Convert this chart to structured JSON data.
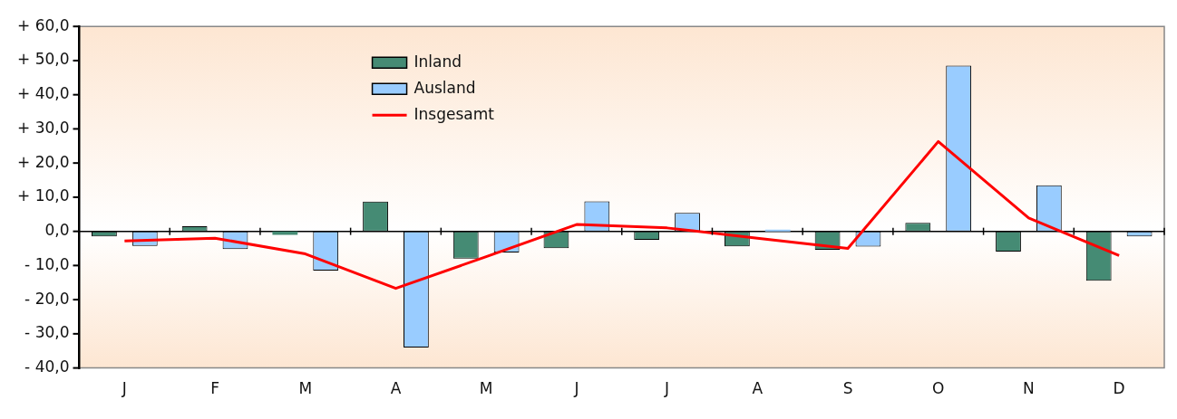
{
  "chart_data": {
    "type": "bar",
    "categories": [
      "J",
      "F",
      "M",
      "A",
      "M",
      "J",
      "J",
      "A",
      "S",
      "O",
      "N",
      "D"
    ],
    "series": [
      {
        "name": "Inland",
        "color": "#458b74",
        "values": [
          -1.5,
          1.5,
          -1,
          8.7,
          -8,
          -4.9,
          -2.5,
          -4.4,
          -5.4,
          2.5,
          -5.9,
          -14.5
        ]
      },
      {
        "name": "Ausland",
        "color": "#99ccff",
        "values": [
          -4.3,
          -5.2,
          -11.5,
          -34,
          -6.2,
          8.8,
          5.4,
          0.5,
          -4.5,
          48.5,
          13.5,
          -1.5
        ]
      },
      {
        "name": "Insgesamt",
        "type": "line",
        "color": "#ff0000",
        "values": [
          -2.8,
          -2,
          -6.6,
          -16.7,
          -7.4,
          2,
          1,
          -2,
          -5,
          26.3,
          3.9,
          -7.1
        ]
      }
    ],
    "ylim": [
      -40,
      60
    ],
    "yticks": [
      {
        "value": -40,
        "label": "- 40,0"
      },
      {
        "value": -30,
        "label": "- 30,0"
      },
      {
        "value": -20,
        "label": "- 20,0"
      },
      {
        "value": -10,
        "label": "- 10,0"
      },
      {
        "value": 0,
        "label": "0,0"
      },
      {
        "value": 10,
        "label": "+ 10,0"
      },
      {
        "value": 20,
        "label": "+ 20,0"
      },
      {
        "value": 30,
        "label": "+ 30,0"
      },
      {
        "value": 40,
        "label": "+ 40,0"
      },
      {
        "value": 50,
        "label": "+ 50,0"
      },
      {
        "value": 60,
        "label": "+ 60,0"
      }
    ],
    "grid": false,
    "ref_lines": [
      {
        "axis": "y",
        "value": 0,
        "color": "#000000"
      }
    ],
    "legend": "top left",
    "marker": "none"
  }
}
